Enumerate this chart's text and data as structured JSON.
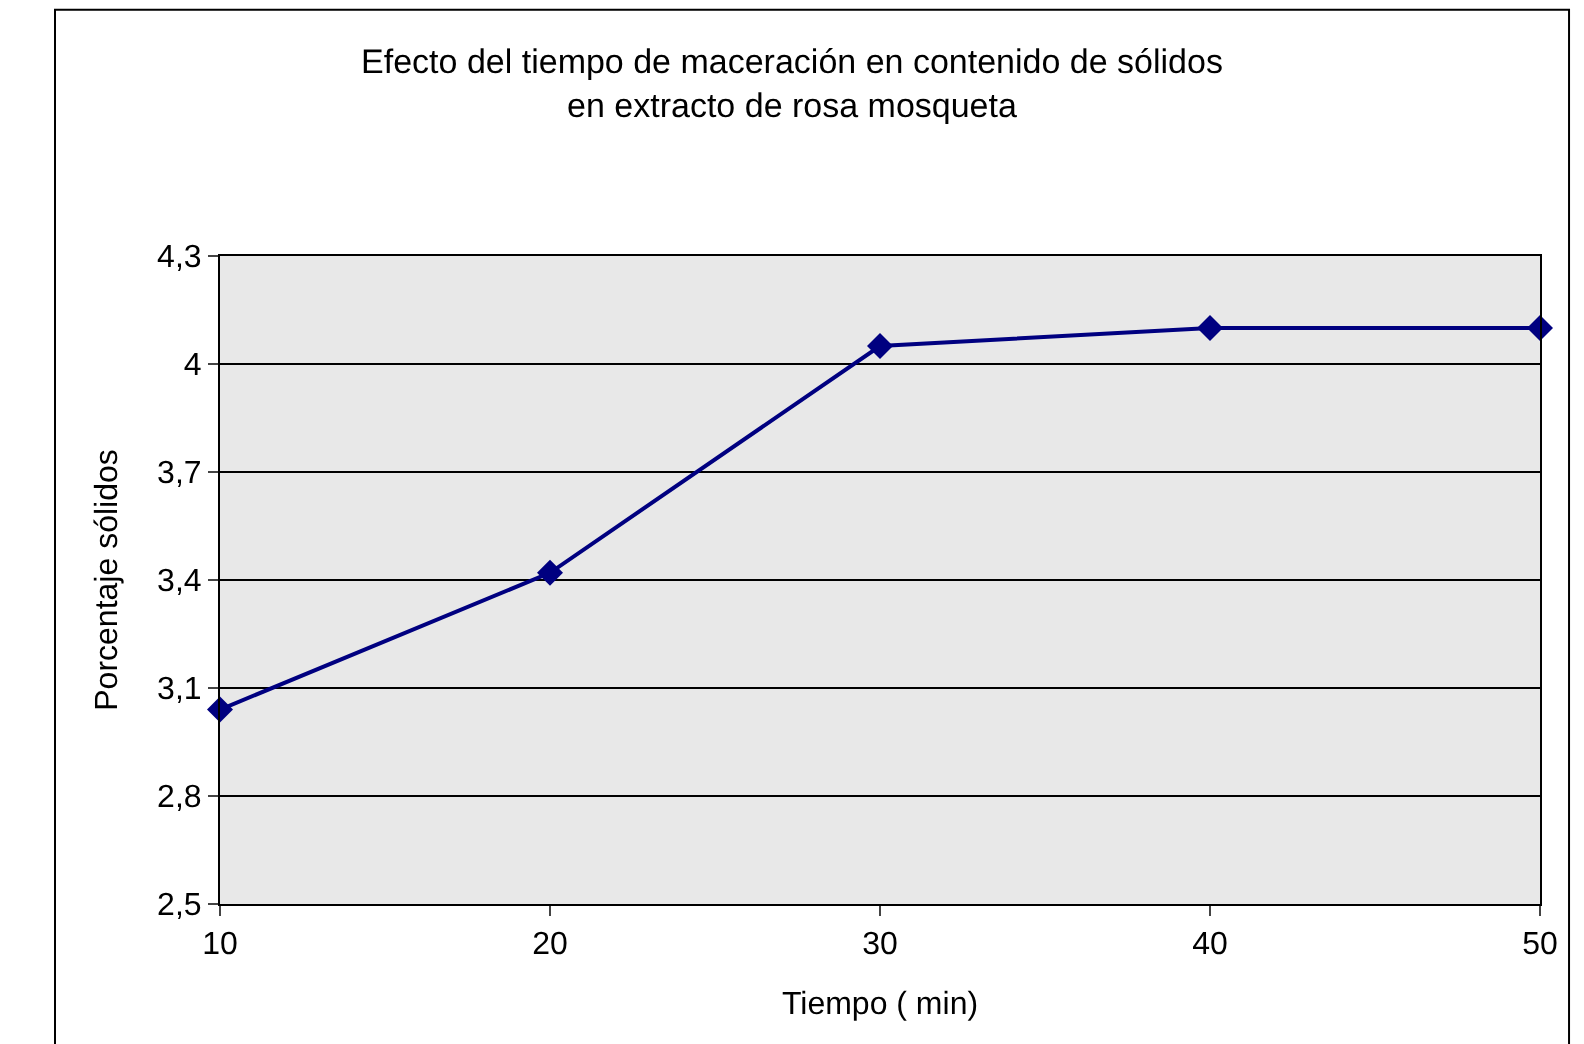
{
  "chart_data": {
    "type": "line",
    "title": "Efecto del tiempo de maceración en contenido de sólidos\nen extracto de rosa mosqueta",
    "xlabel": "Tiempo ( min)",
    "ylabel": "Porcentaje sólidos",
    "x": [
      10,
      20,
      30,
      40,
      50
    ],
    "series": [
      {
        "color": "#000080",
        "values": [
          3.04,
          3.42,
          4.05,
          4.1,
          4.1
        ]
      }
    ],
    "xlim": [
      10,
      50
    ],
    "xticks": [
      10,
      20,
      30,
      40,
      50
    ],
    "ylim": [
      2.5,
      4.3
    ],
    "yticks": [
      {
        "value": 2.5,
        "label": "2,5"
      },
      {
        "value": 2.8,
        "label": "2,8"
      },
      {
        "value": 3.1,
        "label": "3,1"
      },
      {
        "value": 3.4,
        "label": "3,4"
      },
      {
        "value": 3.7,
        "label": "3,7"
      },
      {
        "value": 4,
        "label": "4"
      },
      {
        "value": 4.3,
        "label": "4,3"
      }
    ],
    "grid": "y",
    "legend": false,
    "marker": "diamond",
    "line_style": "solid"
  }
}
